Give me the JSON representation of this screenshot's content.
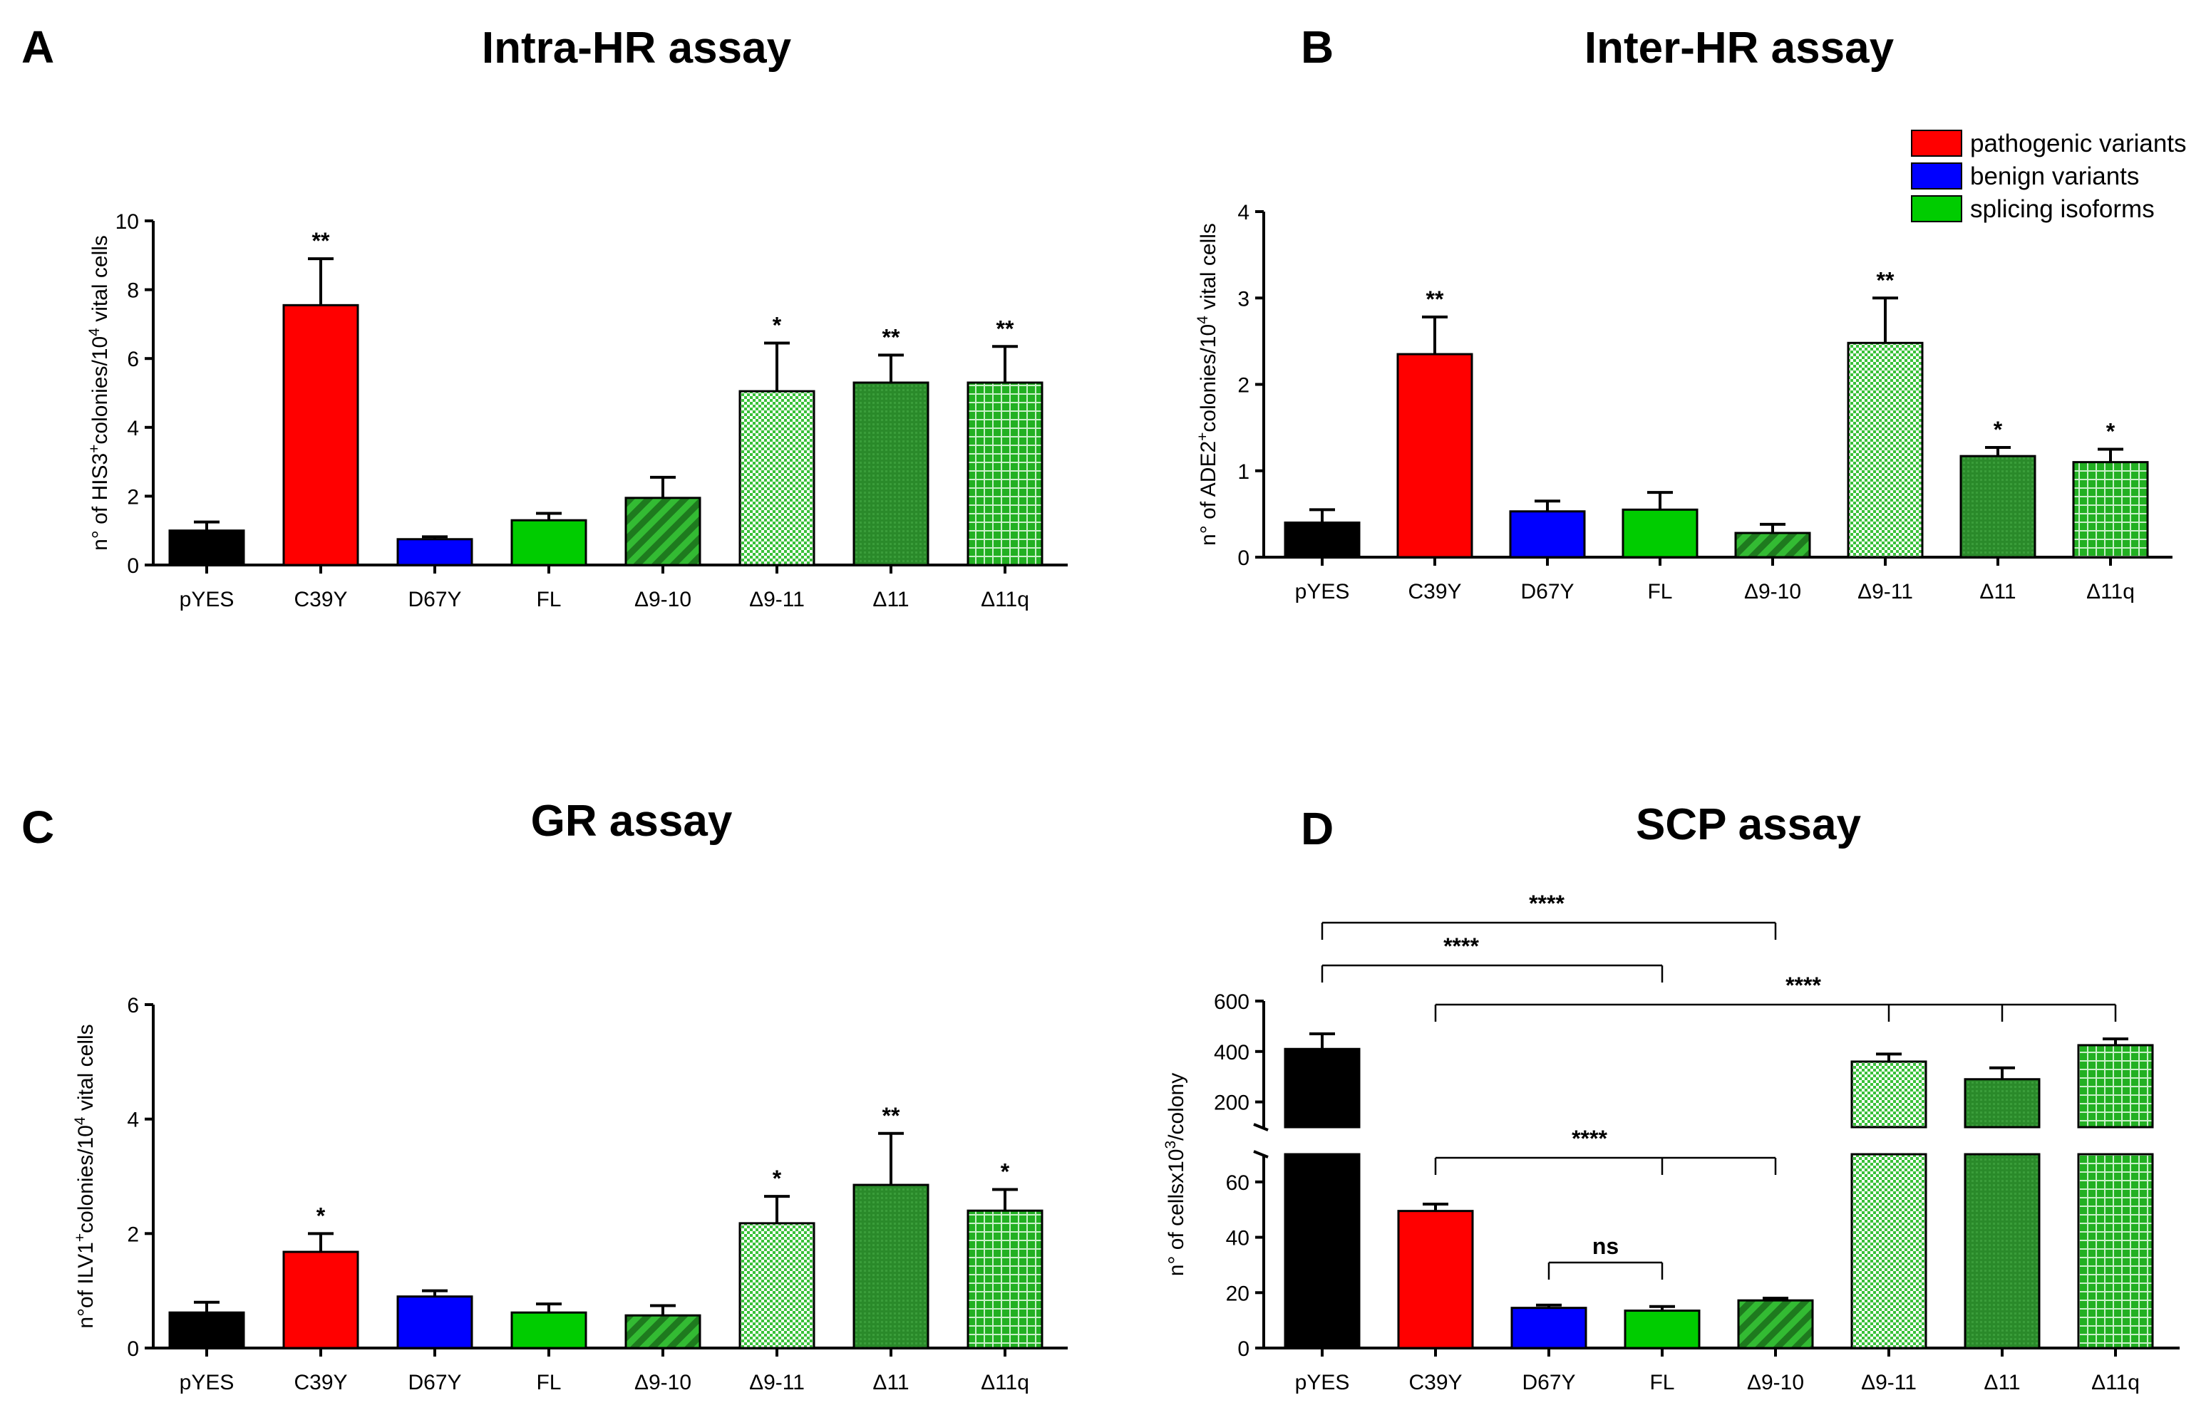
{
  "colors": {
    "black": "#000000",
    "red": "#ff0000",
    "blue": "#0000ff",
    "green": "#00cc00",
    "dark_green": "#2e8b2e",
    "light_green": "#a8e8a0"
  },
  "legend": {
    "items": [
      {
        "label": "pathogenic variants",
        "color": "#ff0000"
      },
      {
        "label": "benign variants",
        "color": "#0000ff"
      },
      {
        "label": "splicing isoforms",
        "color": "#00cc00"
      }
    ]
  },
  "chart_data": [
    {
      "letter": "A",
      "type": "bar",
      "title": "Intra-HR assay",
      "ylabel_parts": [
        "n° of HIS3",
        "+",
        "colonies/10",
        "4",
        " vital cells"
      ],
      "categories": [
        "pYES",
        "C39Y",
        "D67Y",
        "FL",
        "Δ9-10",
        "Δ9-11",
        "Δ11",
        "Δ11q"
      ],
      "values": [
        1.0,
        7.55,
        0.75,
        1.3,
        1.95,
        5.05,
        5.3,
        5.3
      ],
      "errors": [
        0.25,
        1.35,
        0.07,
        0.2,
        0.6,
        1.4,
        0.8,
        1.05
      ],
      "significance": [
        "",
        "**",
        "",
        "",
        "",
        "*",
        "**",
        "**"
      ],
      "fills": [
        "black",
        "red",
        "blue",
        "green",
        "diag",
        "check",
        "dark",
        "grid"
      ],
      "ylim": [
        0,
        10
      ],
      "yticks": [
        "0",
        "2",
        "4",
        "6",
        "8",
        "10"
      ]
    },
    {
      "letter": "B",
      "type": "bar",
      "title": "Inter-HR assay",
      "ylabel_parts": [
        "n° of ADE2",
        "+",
        "colonies/10",
        "4",
        " vital cells"
      ],
      "categories": [
        "pYES",
        "C39Y",
        "D67Y",
        "FL",
        "Δ9-10",
        "Δ9-11",
        "Δ11",
        "Δ11q"
      ],
      "values": [
        0.4,
        2.35,
        0.53,
        0.55,
        0.28,
        2.48,
        1.17,
        1.1
      ],
      "errors": [
        0.15,
        0.43,
        0.12,
        0.2,
        0.1,
        0.52,
        0.1,
        0.15
      ],
      "significance": [
        "",
        "**",
        "",
        "",
        "",
        "**",
        "*",
        "*"
      ],
      "fills": [
        "black",
        "red",
        "blue",
        "green",
        "diag",
        "check",
        "dark",
        "grid"
      ],
      "ylim": [
        0,
        4
      ],
      "yticks": [
        "0",
        "1",
        "2",
        "3",
        "4"
      ]
    },
    {
      "letter": "C",
      "type": "bar",
      "title": "GR assay",
      "ylabel_parts": [
        "n°of ILV1",
        "+",
        "colonies/10",
        "4",
        " vital cells"
      ],
      "categories": [
        "pYES",
        "C39Y",
        "D67Y",
        "FL",
        "Δ9-10",
        "Δ9-11",
        "Δ11",
        "Δ11q"
      ],
      "values": [
        0.62,
        1.68,
        0.9,
        0.62,
        0.57,
        2.18,
        2.85,
        2.4
      ],
      "errors": [
        0.18,
        0.32,
        0.1,
        0.15,
        0.17,
        0.47,
        0.9,
        0.37
      ],
      "significance": [
        "",
        "*",
        "",
        "",
        "",
        "*",
        "**",
        "*"
      ],
      "fills": [
        "black",
        "red",
        "blue",
        "green",
        "diag",
        "check",
        "dark",
        "grid"
      ],
      "ylim": [
        0,
        6
      ],
      "yticks": [
        "0",
        "2",
        "4",
        "6"
      ]
    },
    {
      "letter": "D",
      "type": "bar",
      "title": "SCP assay",
      "ylabel_parts": [
        "n° of cellsx10",
        "3",
        "/colony",
        "",
        ""
      ],
      "categories": [
        "pYES",
        "C39Y",
        "D67Y",
        "FL",
        "Δ9-10",
        "Δ9-11",
        "Δ11",
        "Δ11q"
      ],
      "values": [
        410,
        49.5,
        14.5,
        13.5,
        17.2,
        360,
        290,
        425
      ],
      "errors": [
        60,
        2.5,
        1.0,
        1.5,
        0.8,
        30,
        45,
        25
      ],
      "fills": [
        "black",
        "red",
        "blue",
        "green",
        "diag",
        "check",
        "dark",
        "grid"
      ],
      "broken_axis": {
        "lower_range": [
          0,
          70
        ],
        "upper_range": [
          100,
          600
        ]
      },
      "lower_yticks": [
        "0",
        "20",
        "40",
        "60"
      ],
      "upper_yticks": [
        "200",
        "400",
        "600"
      ],
      "brackets": [
        {
          "label": "****",
          "from": 0,
          "to": 4
        },
        {
          "label": "****",
          "from": 0,
          "to": 3
        },
        {
          "label": "****",
          "from": 1,
          "to": [
            5,
            6,
            7
          ]
        },
        {
          "label": "****",
          "from": 1,
          "to": [
            3,
            4
          ]
        },
        {
          "label": "ns",
          "from": 2,
          "to": 3
        }
      ]
    }
  ]
}
